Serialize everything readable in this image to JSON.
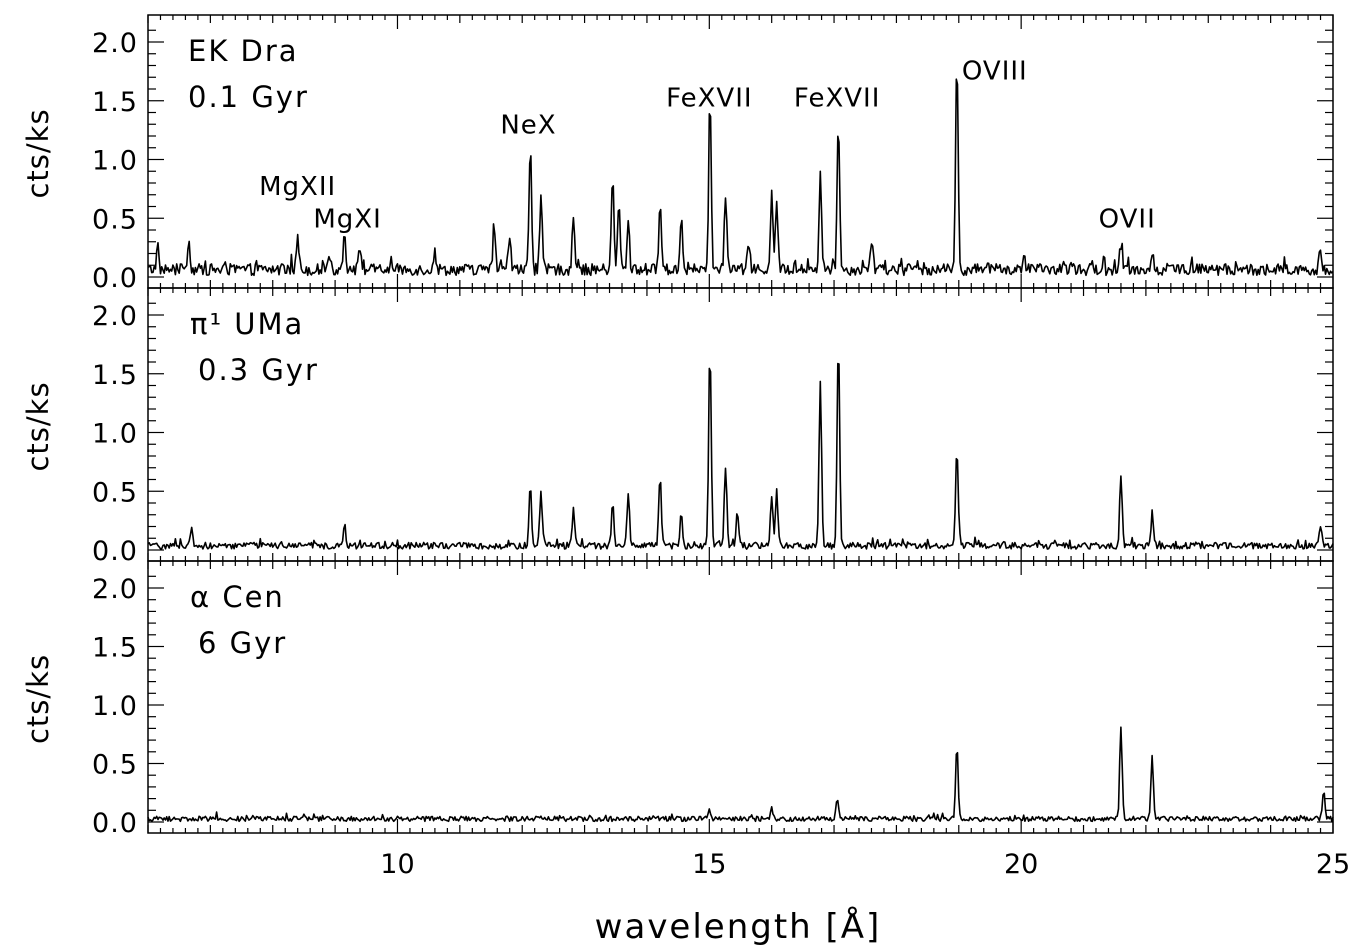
{
  "chart_data": [
    {
      "type": "line",
      "panel_labels": [
        "EK Dra",
        "0.1 Gyr"
      ],
      "ylabel": "cts/ks",
      "ylim": [
        0,
        2.1
      ],
      "yticks": [
        "0.0",
        "0.5",
        "1.0",
        "1.5",
        "2.0"
      ],
      "xlim": [
        6,
        25
      ],
      "continuum": 0.07,
      "peaks": [
        {
          "x": 6.15,
          "y": 0.15
        },
        {
          "x": 6.65,
          "y": 0.25
        },
        {
          "x": 8.4,
          "y": 0.28
        },
        {
          "x": 8.9,
          "y": 0.15
        },
        {
          "x": 9.15,
          "y": 0.33
        },
        {
          "x": 9.4,
          "y": 0.2
        },
        {
          "x": 10.6,
          "y": 0.15
        },
        {
          "x": 11.55,
          "y": 0.35
        },
        {
          "x": 11.8,
          "y": 0.3
        },
        {
          "x": 12.13,
          "y": 1.05
        },
        {
          "x": 12.3,
          "y": 0.6
        },
        {
          "x": 12.82,
          "y": 0.45
        },
        {
          "x": 13.45,
          "y": 0.78
        },
        {
          "x": 13.55,
          "y": 0.55
        },
        {
          "x": 13.7,
          "y": 0.4
        },
        {
          "x": 14.21,
          "y": 0.58
        },
        {
          "x": 14.55,
          "y": 0.45
        },
        {
          "x": 15.01,
          "y": 1.45
        },
        {
          "x": 15.26,
          "y": 0.62
        },
        {
          "x": 15.63,
          "y": 0.25
        },
        {
          "x": 16.0,
          "y": 0.62
        },
        {
          "x": 16.08,
          "y": 0.55
        },
        {
          "x": 16.78,
          "y": 0.82
        },
        {
          "x": 17.07,
          "y": 1.25
        },
        {
          "x": 17.6,
          "y": 0.25
        },
        {
          "x": 18.97,
          "y": 1.8
        },
        {
          "x": 21.6,
          "y": 0.22
        },
        {
          "x": 22.1,
          "y": 0.15
        },
        {
          "x": 24.8,
          "y": 0.15
        }
      ],
      "annotations": [
        {
          "text": "MgXII",
          "x": 8.4,
          "y": 0.7
        },
        {
          "text": "MgXI",
          "x": 9.2,
          "y": 0.42
        },
        {
          "text": "NeX",
          "x": 12.1,
          "y": 1.22
        },
        {
          "text": "FeXVII",
          "x": 15.0,
          "y": 1.45
        },
        {
          "text": "FeXVII",
          "x": 17.05,
          "y": 1.45
        }
      ],
      "oviii_label": {
        "text": "OVIII",
        "x": 19.05,
        "y": 1.68
      },
      "ovii_label": {
        "text": "OVII",
        "x": 21.7,
        "y": 0.42
      }
    },
    {
      "type": "line",
      "panel_labels": [
        "π¹ UMa",
        "0.3 Gyr"
      ],
      "ylabel": "cts/ks",
      "ylim": [
        0,
        2.1
      ],
      "yticks": [
        "0.0",
        "0.5",
        "1.0",
        "1.5",
        "2.0"
      ],
      "xlim": [
        6,
        25
      ],
      "continuum": 0.04,
      "peaks": [
        {
          "x": 6.7,
          "y": 0.16
        },
        {
          "x": 9.15,
          "y": 0.18
        },
        {
          "x": 12.13,
          "y": 0.5
        },
        {
          "x": 12.3,
          "y": 0.45
        },
        {
          "x": 12.82,
          "y": 0.3
        },
        {
          "x": 13.45,
          "y": 0.38
        },
        {
          "x": 13.7,
          "y": 0.45
        },
        {
          "x": 14.21,
          "y": 0.58
        },
        {
          "x": 14.55,
          "y": 0.28
        },
        {
          "x": 15.01,
          "y": 1.7
        },
        {
          "x": 15.26,
          "y": 0.68
        },
        {
          "x": 15.45,
          "y": 0.3
        },
        {
          "x": 16.0,
          "y": 0.42
        },
        {
          "x": 16.08,
          "y": 0.48
        },
        {
          "x": 16.78,
          "y": 1.4
        },
        {
          "x": 17.07,
          "y": 1.76
        },
        {
          "x": 18.97,
          "y": 0.85
        },
        {
          "x": 21.6,
          "y": 0.6
        },
        {
          "x": 22.1,
          "y": 0.25
        },
        {
          "x": 24.8,
          "y": 0.18
        }
      ]
    },
    {
      "type": "line",
      "panel_labels": [
        "α Cen",
        "6 Gyr"
      ],
      "ylabel": "cts/ks",
      "ylim": [
        0,
        2.1
      ],
      "yticks": [
        "0.0",
        "0.5",
        "1.0",
        "1.5",
        "2.0"
      ],
      "xlim": [
        6,
        25
      ],
      "xlabel": "wavelength [Å]",
      "xticks": [
        "10",
        "15",
        "20",
        "25"
      ],
      "continuum": 0.03,
      "peaks": [
        {
          "x": 15.0,
          "y": 0.1
        },
        {
          "x": 16.0,
          "y": 0.1
        },
        {
          "x": 17.05,
          "y": 0.18
        },
        {
          "x": 18.97,
          "y": 0.62
        },
        {
          "x": 21.6,
          "y": 0.76
        },
        {
          "x": 22.1,
          "y": 0.55
        },
        {
          "x": 24.85,
          "y": 0.25
        }
      ]
    }
  ]
}
